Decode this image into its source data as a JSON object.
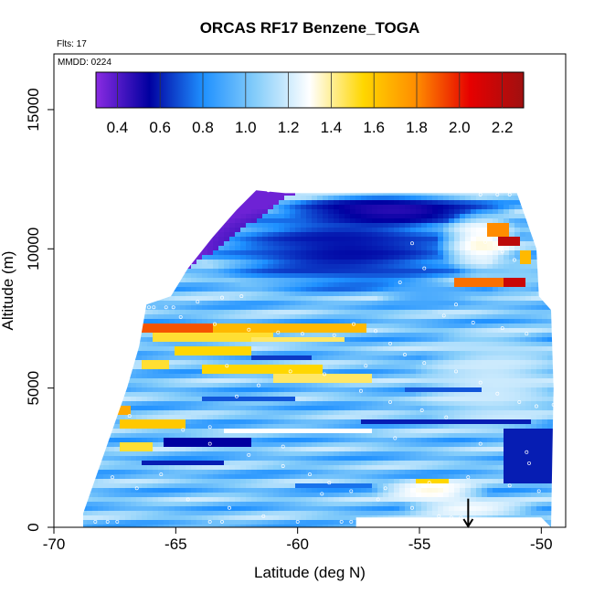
{
  "chart_data": {
    "type": "heatmap",
    "title": "ORCAS RF17 Benzene_TOGA",
    "flights_note": "Flts: 17",
    "date_note": "MMDD: 0224",
    "xlabel": "Latitude (deg N)",
    "ylabel": "Altitude (m)",
    "xlim": [
      -70,
      -49
    ],
    "ylim": [
      0,
      17000
    ],
    "x_ticks": [
      -70,
      -65,
      -60,
      -55,
      -50
    ],
    "x_tick_labels": [
      "-70",
      "-65",
      "-60",
      "-55",
      "-50"
    ],
    "y_ticks": [
      0,
      5000,
      10000,
      15000
    ],
    "y_tick_labels": [
      "0",
      "5000",
      "10000",
      "15000"
    ],
    "colorbar": {
      "min": 0.3,
      "max": 2.3,
      "ticks": [
        0.4,
        0.6,
        0.8,
        1.0,
        1.2,
        1.4,
        1.6,
        1.8,
        2.0,
        2.2
      ],
      "tick_labels": [
        "0.4",
        "0.6",
        "0.8",
        "1.0",
        "1.2",
        "1.4",
        "1.6",
        "1.8",
        "2.0",
        "2.2"
      ],
      "colors": [
        "#8a2be2",
        "#0000a0",
        "#1e90ff",
        "#87cefa",
        "#ffffff",
        "#ffd700",
        "#ff8c00",
        "#e60000",
        "#a01010"
      ]
    },
    "grid": false,
    "domain_upper_edge": [
      [
        -68.8,
        500
      ],
      [
        -68.2,
        2000
      ],
      [
        -67.6,
        3500
      ],
      [
        -67.0,
        5000
      ],
      [
        -66.5,
        6500
      ],
      [
        -66.2,
        8000
      ],
      [
        -65.2,
        8300
      ],
      [
        -64.5,
        9300
      ],
      [
        -63.5,
        10400
      ],
      [
        -62.5,
        11400
      ],
      [
        -61.7,
        12100
      ],
      [
        -60.5,
        12000
      ],
      [
        -59.0,
        12000
      ],
      [
        -55.0,
        12000
      ],
      [
        -51.0,
        12000
      ],
      [
        -50.6,
        11000
      ],
      [
        -50.2,
        10000
      ],
      [
        -50.1,
        8300
      ],
      [
        -49.6,
        7800
      ],
      [
        -49.5,
        5000
      ],
      [
        -49.6,
        0
      ]
    ],
    "domain_lower_edge": [
      [
        -68.8,
        0
      ],
      [
        -57.6,
        0
      ],
      [
        -57.6,
        350
      ],
      [
        -50.0,
        350
      ]
    ],
    "field_regions": [
      {
        "type": "linear",
        "x1": -66.5,
        "y1": 8000,
        "x2": -60.2,
        "y2": 12000,
        "value": 0.35
      },
      {
        "type": "ellipse",
        "cx": -58.0,
        "cy": 10000,
        "rx": 6.0,
        "ry": 1800,
        "value": 0.55
      },
      {
        "type": "ellipse",
        "cx": -56.0,
        "cy": 11400,
        "rx": 5.0,
        "ry": 600,
        "value": 0.45
      },
      {
        "type": "ellipse",
        "cx": -54.8,
        "cy": 8300,
        "rx": 2.0,
        "ry": 600,
        "value": 0.9
      },
      {
        "type": "ellipse",
        "cx": -52.5,
        "cy": 10200,
        "rx": 1.8,
        "ry": 1200,
        "value": 1.35
      },
      {
        "type": "ellipse",
        "cx": -51.0,
        "cy": 9000,
        "rx": 1.4,
        "ry": 900,
        "value": 1.05
      },
      {
        "type": "band",
        "x1": -53.6,
        "x2": -51.1,
        "y1": 8650,
        "y2": 9000,
        "value": 1.85
      },
      {
        "type": "band",
        "x1": -51.5,
        "x2": -50.7,
        "y1": 8650,
        "y2": 9000,
        "value": 2.15
      },
      {
        "type": "band",
        "x1": -52.3,
        "x2": -51.3,
        "y1": 10500,
        "y2": 10900,
        "value": 1.8
      },
      {
        "type": "band",
        "x1": -51.8,
        "x2": -50.9,
        "y1": 10100,
        "y2": 10450,
        "value": 2.2
      },
      {
        "type": "band",
        "x1": -50.9,
        "x2": -50.5,
        "y1": 9500,
        "y2": 10000,
        "value": 1.65
      },
      {
        "type": "band",
        "x1": -66.0,
        "x2": -57.0,
        "y1": 7250,
        "y2": 7400,
        "value": 1.55
      },
      {
        "type": "band",
        "x1": -66.8,
        "x2": -63.5,
        "y1": 7000,
        "y2": 7250,
        "value": 1.9
      },
      {
        "type": "band",
        "x1": -63.5,
        "x2": -57.2,
        "y1": 7000,
        "y2": 7250,
        "value": 1.65
      },
      {
        "type": "band",
        "x1": -66.0,
        "x2": -61.0,
        "y1": 6650,
        "y2": 7000,
        "value": 1.5
      },
      {
        "type": "band",
        "x1": -65.0,
        "x2": -62.0,
        "y1": 6100,
        "y2": 6450,
        "value": 1.55
      },
      {
        "type": "band",
        "x1": -64.0,
        "x2": -59.0,
        "y1": 5500,
        "y2": 5800,
        "value": 1.55
      },
      {
        "type": "band",
        "x1": -61.0,
        "x2": -57.0,
        "y1": 5200,
        "y2": 5450,
        "value": 1.45
      },
      {
        "type": "band",
        "x1": -66.3,
        "x2": -65.3,
        "y1": 5700,
        "y2": 6000,
        "value": 1.5
      },
      {
        "type": "band",
        "x1": -62.0,
        "x2": -58.0,
        "y1": 6700,
        "y2": 6900,
        "value": 1.45
      },
      {
        "type": "band",
        "x1": -67.2,
        "x2": -64.5,
        "y1": 3600,
        "y2": 3850,
        "value": 1.6
      },
      {
        "type": "band",
        "x1": -67.5,
        "x2": -66.8,
        "y1": 4100,
        "y2": 4400,
        "value": 1.7
      },
      {
        "type": "band",
        "x1": -67.2,
        "x2": -66.0,
        "y1": 2800,
        "y2": 3050,
        "value": 1.5
      },
      {
        "type": "band",
        "x1": -63.0,
        "x2": -57.0,
        "y1": 3300,
        "y2": 3500,
        "value": 1.3
      },
      {
        "type": "ellipse",
        "cx": -52.0,
        "cy": 5200,
        "rx": 3.3,
        "ry": 2200,
        "value": 1.2
      },
      {
        "type": "ellipse",
        "cx": -54.5,
        "cy": 1300,
        "rx": 2.5,
        "ry": 500,
        "value": 1.35
      },
      {
        "type": "band",
        "x1": -55.2,
        "x2": -53.8,
        "y1": 1550,
        "y2": 1800,
        "value": 1.55
      },
      {
        "type": "ellipse",
        "cx": -53.0,
        "cy": 700,
        "rx": 3.0,
        "ry": 400,
        "value": 1.3
      },
      {
        "type": "band",
        "x1": -51.5,
        "x2": -49.5,
        "y1": 1500,
        "y2": 3500,
        "value": 0.6
      },
      {
        "type": "band",
        "x1": -57.5,
        "x2": -50.5,
        "y1": 3650,
        "y2": 3850,
        "value": 0.6
      },
      {
        "type": "band",
        "x1": -65.5,
        "x2": -62.0,
        "y1": 2950,
        "y2": 3200,
        "value": 0.55
      },
      {
        "type": "band",
        "x1": -66.5,
        "x2": -63.0,
        "y1": 2200,
        "y2": 2400,
        "value": 0.6
      },
      {
        "type": "band",
        "x1": -64.0,
        "x2": -60.0,
        "y1": 4450,
        "y2": 4650,
        "value": 0.7
      },
      {
        "type": "band",
        "x1": -62.0,
        "x2": -59.5,
        "y1": 5950,
        "y2": 6150,
        "value": 0.65
      },
      {
        "type": "band",
        "x1": -55.5,
        "x2": -52.5,
        "y1": 4800,
        "y2": 5000,
        "value": 0.7
      },
      {
        "type": "band",
        "x1": -60.0,
        "x2": -57.0,
        "y1": 1450,
        "y2": 1650,
        "value": 0.75
      }
    ],
    "sample_points": [
      [
        -61.2,
        12100
      ],
      [
        -52.5,
        11950
      ],
      [
        -51.8,
        11950
      ],
      [
        -51.3,
        11950
      ],
      [
        -50.9,
        11950
      ],
      [
        -55.3,
        10200
      ],
      [
        -54.8,
        9300
      ],
      [
        -52.3,
        10250
      ],
      [
        -51.6,
        9900
      ],
      [
        -51.1,
        9600
      ],
      [
        -53.5,
        8000
      ],
      [
        -54.0,
        7600
      ],
      [
        -52.8,
        7350
      ],
      [
        -51.6,
        7150
      ],
      [
        -50.6,
        6950
      ],
      [
        -58.5,
        6900
      ],
      [
        -59.8,
        6950
      ],
      [
        -60.8,
        7000
      ],
      [
        -62.0,
        7100
      ],
      [
        -63.4,
        7300
      ],
      [
        -64.8,
        7550
      ],
      [
        -65.4,
        7900
      ],
      [
        -65.9,
        7900
      ],
      [
        -66.1,
        7900
      ],
      [
        -65.1,
        7900
      ],
      [
        -64.1,
        8100
      ],
      [
        -63.1,
        8250
      ],
      [
        -62.3,
        8300
      ],
      [
        -57.7,
        7300
      ],
      [
        -56.8,
        7050
      ],
      [
        -56.2,
        6600
      ],
      [
        -55.6,
        6200
      ],
      [
        -54.8,
        5900
      ],
      [
        -53.5,
        5600
      ],
      [
        -52.5,
        5200
      ],
      [
        -51.8,
        4800
      ],
      [
        -50.9,
        4500
      ],
      [
        -50.2,
        4350
      ],
      [
        -62.9,
        5800
      ],
      [
        -60.3,
        5600
      ],
      [
        -58.9,
        5500
      ],
      [
        -57.4,
        4900
      ],
      [
        -56.2,
        4500
      ],
      [
        -54.9,
        4200
      ],
      [
        -53.9,
        3950
      ],
      [
        -66.9,
        4000
      ],
      [
        -64.7,
        3500
      ],
      [
        -63.6,
        3000
      ],
      [
        -62.0,
        2600
      ],
      [
        -60.6,
        2200
      ],
      [
        -59.5,
        1900
      ],
      [
        -58.7,
        1600
      ],
      [
        -57.8,
        1300
      ],
      [
        -56.7,
        1000
      ],
      [
        -55.3,
        700
      ],
      [
        -54.2,
        400
      ],
      [
        -53.7,
        350
      ],
      [
        -53.3,
        350
      ],
      [
        -57.8,
        200
      ],
      [
        -58.2,
        200
      ],
      [
        -67.6,
        1800
      ],
      [
        -66.6,
        1400
      ],
      [
        -64.5,
        1000
      ],
      [
        -62.8,
        700
      ],
      [
        -61.4,
        400
      ],
      [
        -60.0,
        200
      ],
      [
        -63.1,
        200
      ],
      [
        -63.6,
        200
      ],
      [
        -67.4,
        200
      ],
      [
        -67.8,
        200
      ],
      [
        -68.3,
        200
      ],
      [
        -68.9,
        200
      ],
      [
        -65.6,
        1900
      ],
      [
        -60.6,
        2900
      ],
      [
        -56.0,
        3200
      ],
      [
        -52.5,
        3000
      ],
      [
        -50.6,
        2700
      ],
      [
        -50.1,
        1300
      ],
      [
        -51.3,
        1500
      ],
      [
        -53.0,
        1800
      ],
      [
        -54.6,
        1600
      ],
      [
        -56.4,
        1400
      ],
      [
        -59.0,
        1200
      ],
      [
        -63.6,
        3600
      ],
      [
        -62.5,
        4700
      ],
      [
        -61.6,
        5100
      ],
      [
        -55.8,
        8800
      ],
      [
        -57.2,
        5800
      ],
      [
        -50.5,
        2300
      ],
      [
        -49.5,
        4400
      ]
    ],
    "arrow_marker": {
      "x": -53.0,
      "y_top": 700,
      "y_bottom": 0
    }
  }
}
